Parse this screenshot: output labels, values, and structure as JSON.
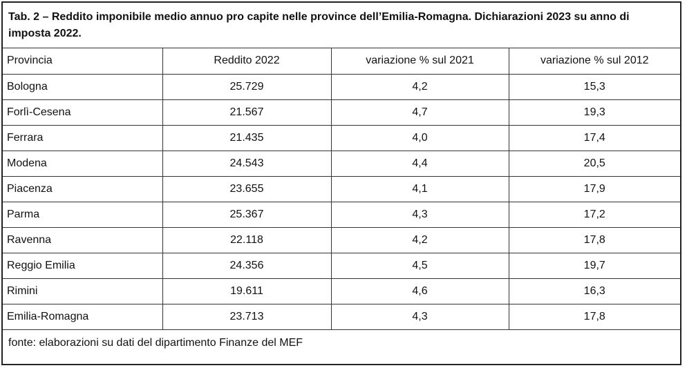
{
  "title": "Tab. 2 – Reddito imponibile medio annuo pro capite nelle province dell’Emilia-Romagna. Dichiarazioni 2023 su anno di imposta 2022.",
  "headers": [
    "Provincia",
    "Reddito 2022",
    "variazione % sul 2021",
    "variazione % sul 2012"
  ],
  "rows": [
    [
      "Bologna",
      "25.729",
      "4,2",
      "15,3"
    ],
    [
      "Forlì-Cesena",
      "21.567",
      "4,7",
      "19,3"
    ],
    [
      "Ferrara",
      "21.435",
      "4,0",
      "17,4"
    ],
    [
      "Modena",
      "24.543",
      "4,4",
      "20,5"
    ],
    [
      "Piacenza",
      "23.655",
      "4,1",
      "17,9"
    ],
    [
      "Parma",
      "25.367",
      "4,3",
      "17,2"
    ],
    [
      "Ravenna",
      "22.118",
      "4,2",
      "17,8"
    ],
    [
      "Reggio Emilia",
      "24.356",
      "4,5",
      "19,7"
    ],
    [
      "Rimini",
      "19.611",
      "4,6",
      "16,3"
    ],
    [
      "Emilia-Romagna",
      "23.713",
      "4,3",
      "17,8"
    ]
  ],
  "source": "fonte: elaborazioni su dati del dipartimento Finanze del MEF"
}
